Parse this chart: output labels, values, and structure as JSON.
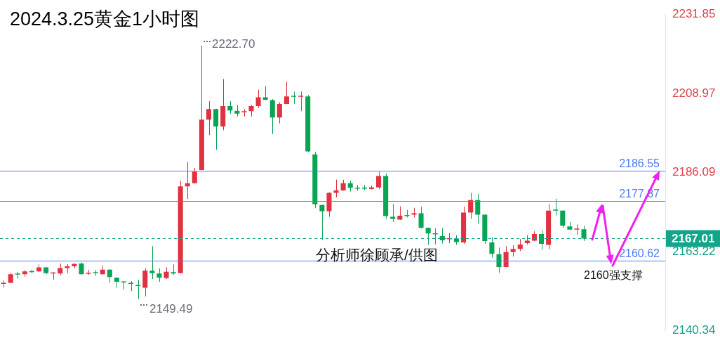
{
  "chart_data": {
    "type": "candlestick",
    "title": "2024.3.25黄金1小时图",
    "categories": [
      null,
      null,
      null,
      null,
      null,
      null,
      null,
      null,
      null,
      null,
      null,
      null,
      null,
      null,
      null,
      null,
      null,
      null,
      null,
      null,
      null,
      null,
      null,
      null,
      null,
      null,
      null,
      null,
      null,
      null,
      null,
      null,
      null,
      null,
      null,
      null,
      null,
      null,
      null,
      null,
      null,
      null,
      null,
      null,
      null,
      null,
      null,
      null,
      null,
      null,
      null,
      null,
      null,
      null,
      null,
      null,
      null,
      null,
      null,
      null,
      null,
      null,
      null,
      null,
      null,
      null,
      null,
      null,
      null,
      null,
      null,
      null,
      null,
      null,
      null,
      null,
      null,
      null,
      null,
      null,
      null,
      null,
      null,
      null,
      null,
      null,
      null,
      null,
      null,
      null,
      null,
      null,
      null,
      null
    ],
    "ohlc": [
      [
        2153.9,
        2154.9,
        2152.8,
        2154.0
      ],
      [
        2154.2,
        2157.1,
        2154.1,
        2156.7
      ],
      [
        2156.7,
        2157.4,
        2155.4,
        2156.6
      ],
      [
        2156.7,
        2157.9,
        2156.0,
        2157.5
      ],
      [
        2157.4,
        2158.0,
        2156.9,
        2157.3
      ],
      [
        2157.5,
        2159.5,
        2157.4,
        2158.7
      ],
      [
        2158.7,
        2158.8,
        2156.7,
        2157.0
      ],
      [
        2156.9,
        2157.3,
        2155.1,
        2157.0
      ],
      [
        2156.9,
        2159.8,
        2156.4,
        2158.5
      ],
      [
        2158.5,
        2159.6,
        2157.0,
        2159.0
      ],
      [
        2159.0,
        2159.8,
        2158.4,
        2159.7
      ],
      [
        2159.8,
        2160.1,
        2156.6,
        2156.7
      ],
      [
        2156.8,
        2158.0,
        2156.5,
        2157.1
      ],
      [
        2157.1,
        2157.9,
        2156.2,
        2157.0
      ],
      [
        2156.7,
        2159.2,
        2156.6,
        2158.0
      ],
      [
        2158.0,
        2158.1,
        2154.2,
        2155.9
      ],
      [
        2155.7,
        2155.8,
        2152.8,
        2154.5
      ],
      [
        2154.4,
        2154.7,
        2152.2,
        2154.3
      ],
      [
        2154.0,
        2154.7,
        2151.8,
        2153.9
      ],
      [
        2153.4,
        2155.1,
        2149.49,
        2153.3
      ],
      [
        2152.8,
        2158.4,
        2150.3,
        2157.7
      ],
      [
        2157.7,
        2164.8,
        2155.3,
        2157.0
      ],
      [
        2156.9,
        2158.4,
        2154.5,
        2155.7
      ],
      [
        2155.6,
        2158.7,
        2155.3,
        2157.4
      ],
      [
        2157.3,
        2159.5,
        2156.5,
        2156.9
      ],
      [
        2157.0,
        2183.7,
        2156.9,
        2182.1
      ],
      [
        2182.1,
        2189.1,
        2178.4,
        2183.0
      ],
      [
        2183.0,
        2187.4,
        2182.9,
        2186.3
      ],
      [
        2186.8,
        2222.7,
        2186.7,
        2201.4
      ],
      [
        2201.4,
        2206.7,
        2196.9,
        2204.4
      ],
      [
        2204.4,
        2204.5,
        2192.7,
        2199.4
      ],
      [
        2199.4,
        2213.1,
        2198.3,
        2205.3
      ],
      [
        2205.3,
        2206.7,
        2203.1,
        2204.0
      ],
      [
        2203.9,
        2205.6,
        2202.3,
        2203.1
      ],
      [
        2203.5,
        2204.4,
        2202.3,
        2203.6
      ],
      [
        2203.8,
        2205.6,
        2202.3,
        2205.3
      ],
      [
        2205.3,
        2210.0,
        2204.8,
        2207.8
      ],
      [
        2207.8,
        2211.0,
        2207.0,
        2207.1
      ],
      [
        2207.0,
        2207.3,
        2197.2,
        2202.0
      ],
      [
        2202.0,
        2206.4,
        2200.3,
        2205.9
      ],
      [
        2205.9,
        2212.3,
        2205.8,
        2208.1
      ],
      [
        2208.1,
        2209.5,
        2205.9,
        2208.0
      ],
      [
        2208.0,
        2209.5,
        2203.8,
        2208.1
      ],
      [
        2208.1,
        2208.5,
        2192.0,
        2192.2
      ],
      [
        2191.3,
        2192.1,
        2175.8,
        2176.9
      ],
      [
        2176.7,
        2176.8,
        2166.6,
        2174.9
      ],
      [
        2174.9,
        2180.4,
        2173.3,
        2180.2
      ],
      [
        2180.2,
        2184.0,
        2178.9,
        2180.9
      ],
      [
        2180.9,
        2184.0,
        2180.8,
        2183.0
      ],
      [
        2183.0,
        2183.7,
        2180.6,
        2181.7
      ],
      [
        2181.5,
        2182.5,
        2180.8,
        2181.4
      ],
      [
        2181.5,
        2182.5,
        2181.0,
        2181.4
      ],
      [
        2181.3,
        2182.3,
        2181.2,
        2181.8
      ],
      [
        2181.8,
        2186.3,
        2181.3,
        2185.1
      ],
      [
        2185.1,
        2185.9,
        2172.7,
        2173.5
      ],
      [
        2173.3,
        2177.0,
        2171.8,
        2172.7
      ],
      [
        2172.5,
        2176.3,
        2172.4,
        2173.6
      ],
      [
        2173.6,
        2175.3,
        2173.1,
        2173.5
      ],
      [
        2173.9,
        2175.9,
        2173.1,
        2174.3
      ],
      [
        2174.3,
        2176.2,
        2169.9,
        2170.1
      ],
      [
        2170.1,
        2170.2,
        2165.2,
        2168.5
      ],
      [
        2168.3,
        2170.0,
        2165.3,
        2168.2
      ],
      [
        2167.7,
        2170.0,
        2165.6,
        2166.5
      ],
      [
        2166.8,
        2168.6,
        2165.7,
        2166.9
      ],
      [
        2167.0,
        2168.0,
        2165.2,
        2166.0
      ],
      [
        2165.9,
        2176.3,
        2165.5,
        2174.5
      ],
      [
        2174.5,
        2180.2,
        2172.7,
        2178.1
      ],
      [
        2178.1,
        2179.9,
        2171.3,
        2173.9
      ],
      [
        2173.9,
        2174.0,
        2165.5,
        2166.3
      ],
      [
        2165.9,
        2167.4,
        2161.5,
        2162.6
      ],
      [
        2162.5,
        2164.4,
        2157.1,
        2158.8
      ],
      [
        2158.8,
        2164.8,
        2158.7,
        2163.1
      ],
      [
        2163.1,
        2165.1,
        2161.8,
        2164.0
      ],
      [
        2164.0,
        2166.9,
        2163.4,
        2165.3
      ],
      [
        2165.7,
        2168.0,
        2165.2,
        2166.4
      ],
      [
        2166.4,
        2169.1,
        2166.2,
        2168.3
      ],
      [
        2168.3,
        2169.4,
        2163.8,
        2165.5
      ],
      [
        2165.2,
        2177.0,
        2163.9,
        2175.1
      ],
      [
        2175.2,
        2178.5,
        2173.7,
        2175.1
      ],
      [
        2175.1,
        2175.2,
        2170.1,
        2170.7
      ],
      [
        2170.5,
        2171.8,
        2169.4,
        2169.6
      ],
      [
        2169.6,
        2171.1,
        2168.0,
        2169.7
      ],
      [
        2169.7,
        2170.7,
        2166.3,
        2167.01
      ],
      null,
      null,
      null,
      null,
      null,
      null,
      null,
      null,
      null,
      null,
      null
    ],
    "colors": [
      "#e13241",
      "#e13241",
      "#0aa455",
      "#e13241",
      "#0aa455",
      "#e13241",
      "#0aa455",
      "#e13241",
      "#e13241",
      "#e13241",
      "#e13241",
      "#0aa455",
      "#e13241",
      "#0aa455",
      "#e13241",
      "#0aa455",
      "#0aa455",
      "#0aa455",
      "#0aa455",
      "#0aa455",
      "#e13241",
      "#0aa455",
      "#0aa455",
      "#e13241",
      "#0aa455",
      "#e13241",
      "#e13241",
      "#e13241",
      "#e13241",
      "#e13241",
      "#0aa455",
      "#e13241",
      "#0aa455",
      "#0aa455",
      "#e13241",
      "#e13241",
      "#e13241",
      "#0aa455",
      "#0aa455",
      "#e13241",
      "#e13241",
      "#0aa455",
      "#e13241",
      "#0aa455",
      "#0aa455",
      "#0aa455",
      "#e13241",
      "#e13241",
      "#e13241",
      "#0aa455",
      "#0aa455",
      "#0aa455",
      "#e13241",
      "#e13241",
      "#0aa455",
      "#0aa455",
      "#e13241",
      "#0aa455",
      "#e13241",
      "#0aa455",
      "#0aa455",
      "#0aa455",
      "#0aa455",
      "#e13241",
      "#0aa455",
      "#e13241",
      "#e13241",
      "#0aa455",
      "#0aa455",
      "#0aa455",
      "#0aa455",
      "#e13241",
      "#e13241",
      "#e13241",
      "#e13241",
      "#e13241",
      "#0aa455",
      "#e13241",
      "#0aa455",
      "#0aa455",
      "#0aa455",
      "#e13241",
      "#0aa455",
      null,
      null,
      null,
      null,
      null,
      null,
      null,
      null,
      null,
      null,
      null
    ],
    "ylim": [
      2140.34,
      2231.85
    ],
    "yticks": [
      2140.34,
      2163.22,
      2186.09,
      2208.97,
      2231.85
    ],
    "tick_labels": "y",
    "ref_lines": [
      {
        "axis": "y",
        "value": 2186.55,
        "label": "2186.55",
        "color": "#4d7cf2"
      },
      {
        "axis": "y",
        "value": 2177.87,
        "label": "2177.87",
        "color": "#4d7cf2"
      },
      {
        "axis": "y",
        "value": 2160.62,
        "label": "2160.62",
        "color": "#4d7cf2"
      },
      {
        "axis": "y",
        "value": 2167.01,
        "label": "2167.01",
        "color": "#12a58a",
        "line_style": "dashed"
      }
    ],
    "annotations": [
      "2222.70",
      "2149.49",
      "分析师徐顾承/供图",
      "2160强支撑"
    ]
  }
}
